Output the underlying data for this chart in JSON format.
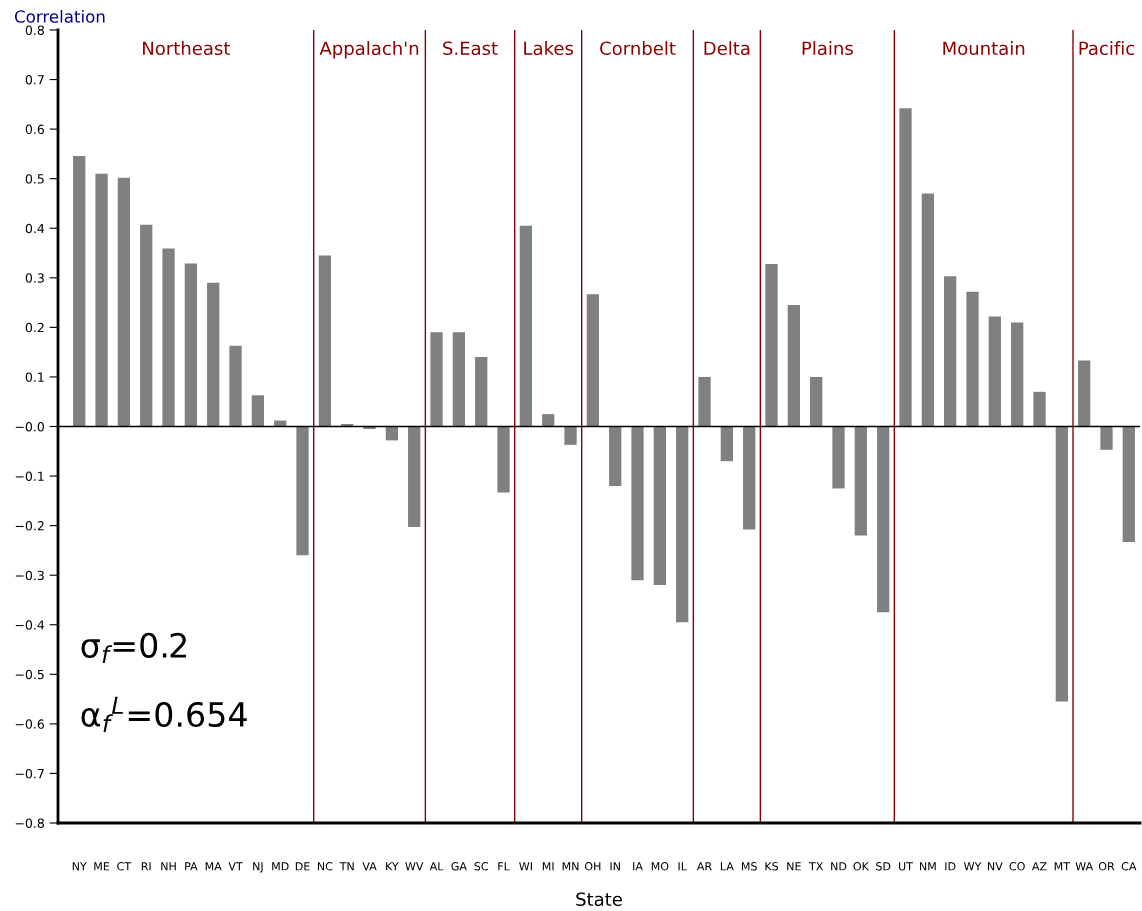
{
  "chart_data": {
    "type": "bar",
    "xlabel": "State",
    "ylabel": "Correlation",
    "categories": [
      "NY",
      "ME",
      "CT",
      "RI",
      "NH",
      "PA",
      "MA",
      "VT",
      "NJ",
      "MD",
      "DE",
      "NC",
      "TN",
      "VA",
      "KY",
      "WV",
      "AL",
      "GA",
      "SC",
      "FL",
      "WI",
      "MI",
      "MN",
      "OH",
      "IN",
      "IA",
      "MO",
      "IL",
      "AR",
      "LA",
      "MS",
      "KS",
      "NE",
      "TX",
      "ND",
      "OK",
      "SD",
      "UT",
      "NM",
      "ID",
      "WY",
      "NV",
      "CO",
      "AZ",
      "MT",
      "WA",
      "OR",
      "CA"
    ],
    "values": [
      0.546,
      0.51,
      0.502,
      0.407,
      0.359,
      0.329,
      0.29,
      0.163,
      0.063,
      0.012,
      -0.26,
      0.345,
      0.005,
      -0.005,
      -0.028,
      -0.203,
      0.19,
      0.19,
      0.14,
      -0.133,
      0.405,
      0.025,
      -0.037,
      0.267,
      -0.12,
      -0.31,
      -0.32,
      -0.395,
      0.1,
      -0.07,
      -0.208,
      0.328,
      0.245,
      0.1,
      -0.125,
      -0.22,
      -0.375,
      0.642,
      0.47,
      0.303,
      0.272,
      0.222,
      0.21,
      0.07,
      -0.555,
      0.133,
      -0.047,
      -0.233
    ],
    "color": "#808080",
    "ylim": [
      -0.8,
      0.8
    ],
    "yticks": [
      {
        "value": -0.8,
        "label": "−0.8"
      },
      {
        "value": -0.7,
        "label": "−0.7"
      },
      {
        "value": -0.6,
        "label": "−0.6"
      },
      {
        "value": -0.5,
        "label": "−0.5"
      },
      {
        "value": -0.4,
        "label": "−0.4"
      },
      {
        "value": -0.3,
        "label": "−0.3"
      },
      {
        "value": -0.2,
        "label": "−0.2"
      },
      {
        "value": -0.1,
        "label": "−0.1"
      },
      {
        "value": 0,
        "label": "−0.0"
      },
      0.1,
      0.2,
      0.3,
      0.4,
      0.5,
      0.6,
      0.7,
      0.8
    ],
    "annotations": [
      "Northeast",
      "Appalach'n",
      "S.East",
      "Lakes",
      "Cornbelt",
      "Delta",
      "Plains",
      "Mountain",
      "Pacific",
      "σ$_{f}$=0.2",
      "α$_{f}$$^{L}$=0.654"
    ],
    "grid": false,
    "legend": false
  }
}
